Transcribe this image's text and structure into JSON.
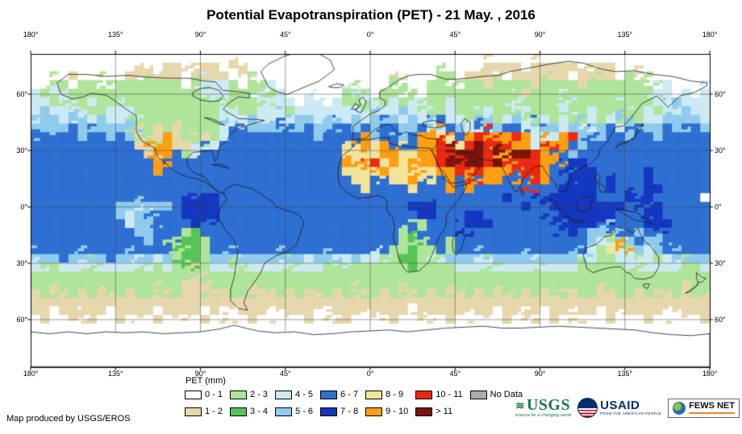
{
  "title": "Potential Evapotranspiration (PET) - 21 May. , 2016",
  "credit": "Map produced by USGS/EROS",
  "axes": {
    "lon_ticks": [
      "180°",
      "135°",
      "90°",
      "45°",
      "0°",
      "45°",
      "90°",
      "135°",
      "180°"
    ],
    "lat_ticks": [
      "60°",
      "30°",
      "0°",
      "30°",
      "60°"
    ]
  },
  "legend": {
    "title": "PET (mm)",
    "items": [
      {
        "label": "0 - 1",
        "color": "#FFFFFF"
      },
      {
        "label": "1 - 2",
        "color": "#E6D7AC"
      },
      {
        "label": "2 - 3",
        "color": "#AEE59A"
      },
      {
        "label": "3 - 4",
        "color": "#56C556"
      },
      {
        "label": "4 - 5",
        "color": "#CDEAF4"
      },
      {
        "label": "5 - 6",
        "color": "#8FCBEC"
      },
      {
        "label": "6 - 7",
        "color": "#2E6FD2"
      },
      {
        "label": "7 - 8",
        "color": "#1437C0"
      },
      {
        "label": "8 - 9",
        "color": "#F3E49B"
      },
      {
        "label": "9 - 10",
        "color": "#FF9E12"
      },
      {
        "label": "10 - 11",
        "color": "#EB2912"
      },
      {
        "label": "> 11",
        "color": "#7C140A"
      },
      {
        "label": "No Data",
        "color": "#ABABAB"
      }
    ]
  },
  "logos": {
    "usgs": {
      "name": "USGS",
      "tagline": "science for a changing world"
    },
    "usaid": {
      "name": "USAID",
      "tagline": "FROM THE AMERICAN PEOPLE"
    },
    "fewsnet": {
      "name": "FEWS NET"
    }
  },
  "chart_data": {
    "type": "heatmap",
    "title": "Potential Evapotranspiration (PET) - 21 May. , 2016",
    "units": "mm",
    "lon_range": [
      -180,
      180
    ],
    "lat_range": [
      -85.3,
      81.4
    ],
    "grid_cols": 72,
    "grid_rows": 36,
    "char_to_class": {
      ".": 0,
      "t": 1,
      "g": 2,
      "G": 3,
      "c": 4,
      "C": 5,
      "b": 6,
      "B": 7,
      "y": 8,
      "o": 9,
      "r": 10,
      "R": 11,
      "N": 12
    },
    "grid": [
      "........................................................................",
      "............t.tt.ttt.t..........................tttt.ttttt.ttt..........",
      "....t.....tt.ttt.tttt.t................t...gg.tttt.tttttt.tttt.gt.......",
      "..gg.ggg.ggggggg.gcccg.ggc........c...g...ggg.ggtggggtggggtggggggg.c....",
      "cgcgggggggggggggggcccggg.gc......ggc.ggg..ggggggggggtgggggggggggggcc.c.c",
      "ccgcggcggggggggggggcggggcgcc.cc.cgggcgcggcggcggggggcggggcgggggggggccCccc",
      "cCccgcggcccggggggggggcggcccgcccccccgcccCccggcgggcggcggggcggcggcggcgccCcc",
      "cCCcCccCcccgggggggggcCcCccCcCCccCcCcCCCcCccbccgcCgcCcgcgcggcgcCggccCCCCc",
      "CCCCbCCCCCCggtgtggggccbCCCbCCbCCbbCbCbbCCbCcbCcbcCbbcbCCcCCcCbcCbCCbCCbC",
      "bCbbbCbbCbCtgtotggtgcbbbbbbbbbCbbbboCbbCboooyborroorocccorCbCbbCbbCbbbbb",
      "bbbbbbbbbbbtgoottgccbbbbbbbbbbbbbbyoyobbboorryrRroroocorobCbbbbbbbbbbbbb",
      "bbbbbbbbbbbbtoobgcbbbbbbbbbbbbbbbyoyyooyyoorRrRRrRoRRroobCbbbbbbbbbbbbbb",
      "bbbbbbbbbbbbboobbbbbbbbbbbbbbbbbboyoryoyyoorRRRRrRorrroobBBbbbbbbbbbbbbb",
      "bbbbbbbbbbbbbobbbbbbbbbbbbbbbbbbbyyoyoyyoyyoorrrooorrrobbBBBbbbbbBbbbbbb",
      "bbbbbbbbbbbbbbbbbbbbbbbbbbbbbbbbbbyyybyyoyyboboroobborobbBBBbBbbbBbbbbbb",
      "bbbbbbbbbbbbbbbbbbbbbbbbbbbbbbbbbbbybbbbybbbobobbbbbbrbbBBBBbBbbbBBbbbbb",
      "bbbbbbbbbbbbbbbbbBBBbbbbbbbbbbbbbbbbbbbbbbbbbbbbbbBbbbBBBBBBbbbBBBbbbbb",
      "bbbbbbbbbCCCcCCbBBBBbbbbbbbbbbbbbbbbbbbbBBBbbbbbbbbbBbbBBBBBBBBbbBBbbbbbb",
      "bbbbbbbbbCcCCbbbBBBBbbbbbbbbbbbbbbbbbbbbbBBbbbBBbbbbbbbBBBBBBBbbbBBbbbbbb",
      "bbbbbbbbbbcCCbbbbBBbbbbbbbbbbbbbbbbbbbbbbgbbbbBBBbbbbbbbBBBBBbbbbBBBbbbbb",
      "bbbbbbbbbbbCCbbbgGbbbbbbbbbbbbbbbbbbbbbggbbbbbBbbbbbbbbbBBbCCCbbCbBbbbbb",
      "bbbbbbbbbbbbCbbgGGgbbbbbbbbbbbbbbbbbbbbgGgbbgbbbbbbbbbbbbbbCcgcCbCCbbbbbb",
      "bbbbbbbbbbbbbbbgGGgbbbbbbbbbbbbbbbbbbbggGggbgbbbbbbbbbbbbbbcgyocCcCbbbbbC",
      "CCCbCCCCbCCCCcCgGGgCCCCCCCCCCcCCCcCcccgGGggcCCCCcCCCCCCCCCCcggcgccgcCCCCCC",
      "ccgcccgccccccgcgGggccgcccccgcccgcgggggggGggggcccgcccccccccgggggcgccccggc",
      "gggggggggggggggggtggggggggggggggggggggggggggggggggggggggggggggggggggggggg",
      "ggggggggggggggggtttggggggggggggggggggggggggggggggggggggggggggggggggggtgg",
      "tgtggtgtggtggtggtttgtggtgtgtggtgtgtggtgtggtgtggtgtggtgtggtggttggtggtgtgg",
      "tttttttttttttttttttttttttttttttttttttttttttttttttttttttttttttttttttttttt",
      "tt.ttttt.tttt.tttt.tt.tttt.tttt.tttt.ttt.tttttttt.tttt.ttttt.ttttttt.tttt",
      ".t..t.t..tt..t.t..t..t.t..t..t..tt..t.t..t..t..t..t..t.t..t..t...t..t..t",
      "........................................................................",
      "........................................................................",
      "........................................................................",
      "........................................................................",
      "........................................................................"
    ]
  }
}
